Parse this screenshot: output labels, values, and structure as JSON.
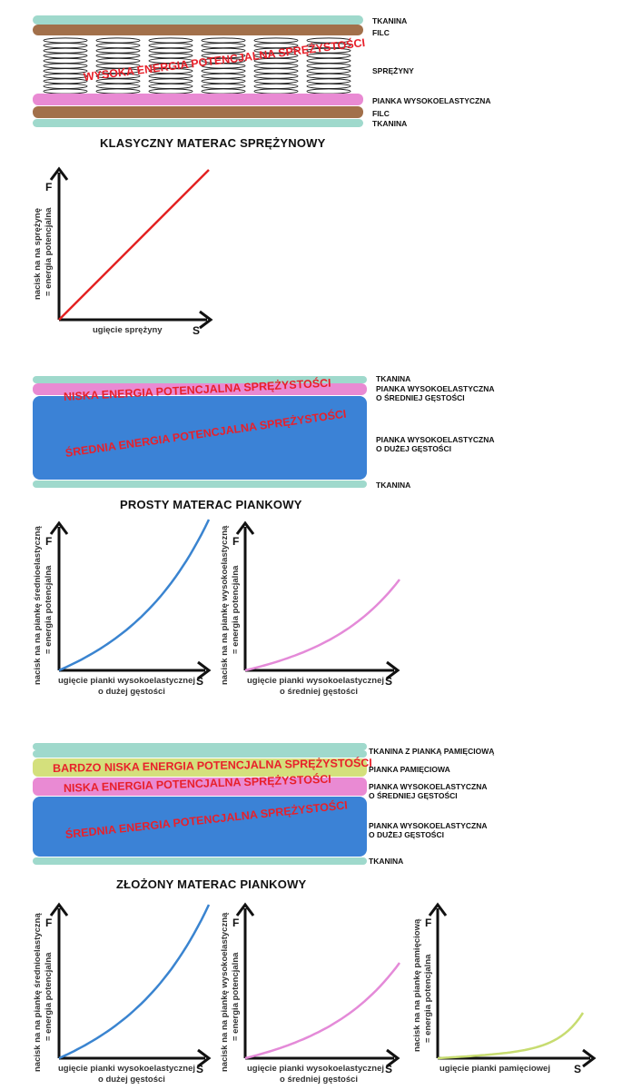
{
  "colors": {
    "tkanina": "#9fd9cc",
    "filc": "#a2704a",
    "pianka_wysokoelastyczna": "#e98ad3",
    "pianka_duza_gestosc": "#3b82d6",
    "pianka_pamieciowa": "#d4e07c",
    "energy_text": "#e8202a",
    "curve_spring": "#e32222",
    "curve_blue": "#3a84d0",
    "curve_pink": "#e48ad8",
    "curve_green": "#c7dc70"
  },
  "section1": {
    "title": "KLASYCZNY MATERAC SPRĘŻYNOWY",
    "energy_label": "WYSOKA ENERGIA POTENCJALNA SPRĘŻYSTOŚCI",
    "layers": [
      "TKANINA",
      "FILC",
      "SPRĘŻYNY",
      "PIANKA WYSOKOELASTYCZNA",
      "FILC",
      "TKANINA"
    ],
    "chart": {
      "y_axis_letter": "F",
      "x_axis_letter": "S",
      "ylabel_line1": "nacisk na na sprężynę",
      "ylabel_line2": "= energia potencjalna",
      "xlabel": "ugięcie sprężyny"
    }
  },
  "section2": {
    "title": "PROSTY MATERAC PIANKOWY",
    "energy_top": "NISKA ENERGIA POTENCJALNA SPRĘŻYSTOŚCI",
    "energy_main": "ŚREDNIA ENERGIA POTENCJALNA SPRĘŻYSTOŚCI",
    "layers": {
      "l1": "TKANINA",
      "l2a": "PIANKA WYSOKOELASTYCZNA",
      "l2b": "O ŚREDNIEJ GĘSTOŚCI",
      "l3a": "PIANKA WYSOKOELASTYCZNA",
      "l3b": "O DUŻEJ GĘSTOŚCI",
      "l4": "TKANINA"
    },
    "chart_left": {
      "y_axis_letter": "F",
      "x_axis_letter": "S",
      "ylabel_line1": "nacisk na na piankę  średnioelastyczną",
      "ylabel_line2": "= energia potencjalna",
      "xlabel_line1": "ugięcie pianki wysokoelastycznej",
      "xlabel_line2": "o dużej gęstości"
    },
    "chart_right": {
      "y_axis_letter": "F",
      "x_axis_letter": "S",
      "ylabel_line1": "nacisk na na piankę  wysokoelastyczną",
      "ylabel_line2": "= energia potencjalna",
      "xlabel_line1": "ugięcie pianki wysokoelastycznej",
      "xlabel_line2": "o średniej gęstości"
    }
  },
  "section3": {
    "title": "ZŁOŻONY MATERAC PIANKOWY",
    "energy_very_low": "BARDZO NISKA ENERGIA POTENCJALNA SPRĘŻYSTOŚCI",
    "energy_low": "NISKA ENERGIA POTENCJALNA SPRĘŻYSTOŚCI",
    "energy_main": "ŚREDNIA ENERGIA POTENCJALNA SPRĘŻYSTOŚCI",
    "layers": {
      "l1": "TKANINA Z PIANKĄ PAMIĘCIOWĄ",
      "l2": "PIANKA PAMIĘCIOWA",
      "l3a": "PIANKA WYSOKOELASTYCZNA",
      "l3b": "O ŚREDNIEJ GĘSTOŚCI",
      "l4a": "PIANKA WYSOKOELASTYCZNA",
      "l4b": "O DUŻEJ GĘSTOŚCI",
      "l5": "TKANINA"
    },
    "chart_1": {
      "y_axis_letter": "F",
      "x_axis_letter": "S",
      "ylabel_line1": "nacisk na na piankę  średnioelastyczną",
      "ylabel_line2": "= energia potencjalna",
      "xlabel_line1": "ugięcie pianki wysokoelastycznej",
      "xlabel_line2": "o dużej gęstości"
    },
    "chart_2": {
      "y_axis_letter": "F",
      "x_axis_letter": "S",
      "ylabel_line1": "nacisk na na piankę  wysokoelastyczną",
      "ylabel_line2": "= energia potencjalna",
      "xlabel_line1": "ugięcie pianki wysokoelastycznej",
      "xlabel_line2": "o średniej gęstości"
    },
    "chart_3": {
      "y_axis_letter": "F",
      "x_axis_letter": "S",
      "ylabel_line1": "nacisk na na piankę  pamięciową",
      "ylabel_line2": "= energia potencjalna",
      "xlabel_line1": "ugięcie pianki pamięciowej"
    }
  }
}
